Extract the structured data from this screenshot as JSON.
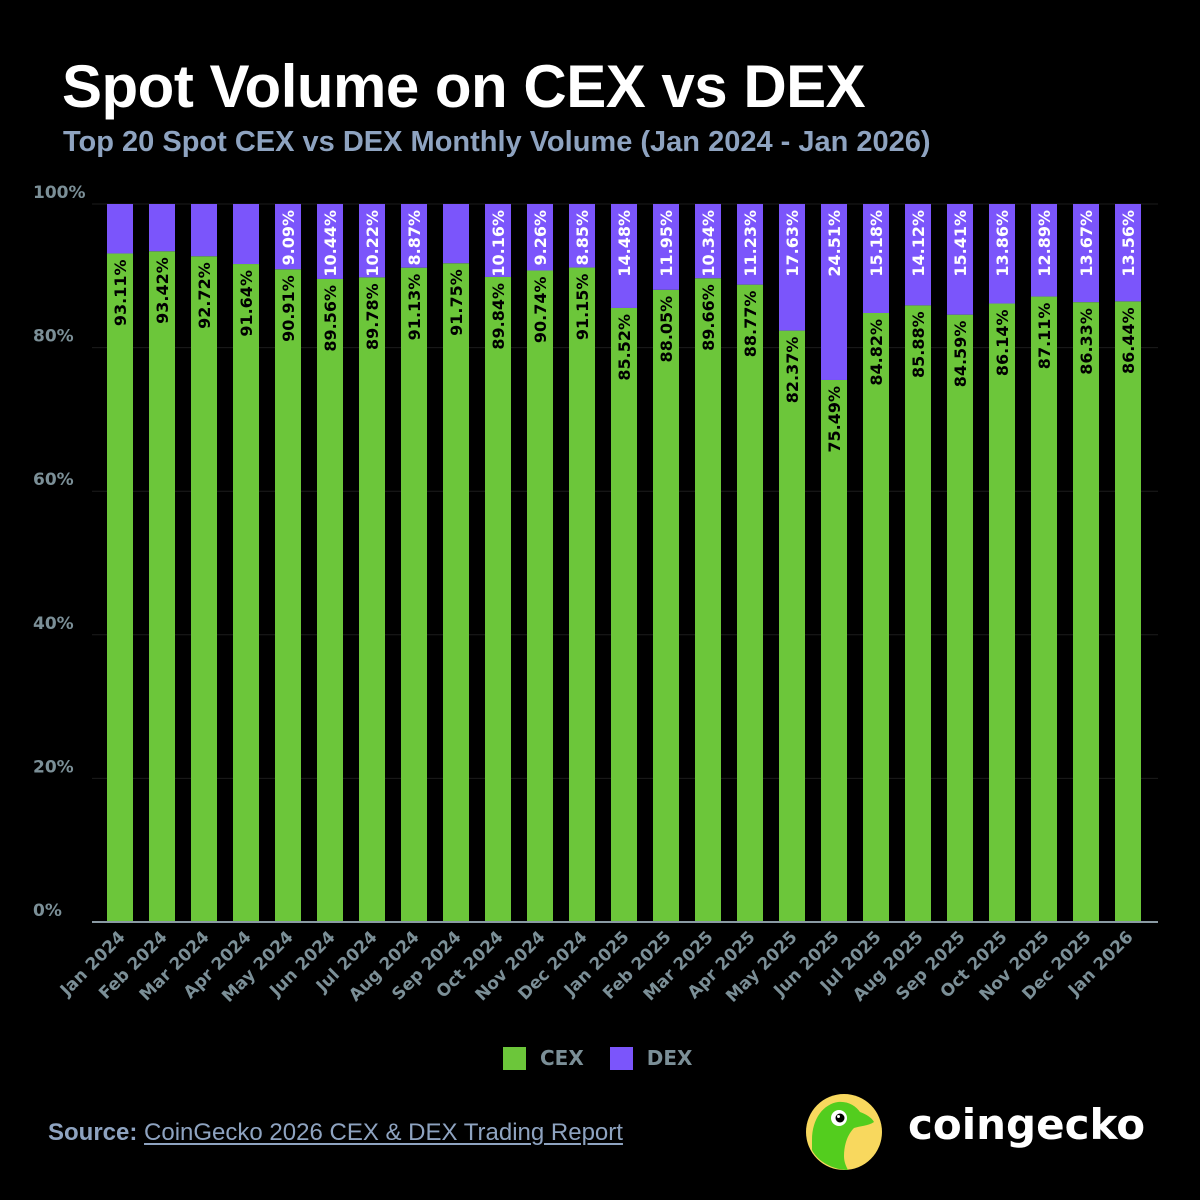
{
  "header": {
    "title": "Spot Volume on CEX vs DEX",
    "subtitle": "Top 20 Spot CEX vs DEX Monthly Volume (Jan 2024 - Jan 2026)"
  },
  "footer": {
    "source_label": "Source:",
    "source_link": "CoinGecko 2026 CEX & DEX Trading Report",
    "brand": "coingecko"
  },
  "colors": {
    "cex": "#6cc63a",
    "dex": "#7b55fb",
    "axis_text": "#7b8f97",
    "grid": "#1c1c1c",
    "axis_line": "#8a9aa3"
  },
  "chart_data": {
    "type": "bar",
    "stacked": true,
    "title": "Spot Volume on CEX vs DEX",
    "subtitle": "Top 20 Spot CEX vs DEX Monthly Volume (Jan 2024 - Jan 2026)",
    "xlabel": "",
    "ylabel": "",
    "ylim": [
      0,
      100
    ],
    "yticks": [
      "0%",
      "20%",
      "40%",
      "60%",
      "80%",
      "100%"
    ],
    "ytick_values": [
      0,
      20,
      40,
      60,
      80,
      100
    ],
    "grid": true,
    "legend_position": "bottom-center",
    "categories": [
      "Jan 2024",
      "Feb 2024",
      "Mar 2024",
      "Apr 2024",
      "May 2024",
      "Jun 2024",
      "Jul 2024",
      "Aug 2024",
      "Sep 2024",
      "Oct 2024",
      "Nov 2024",
      "Dec 2024",
      "Jan 2025",
      "Feb 2025",
      "Mar 2025",
      "Apr 2025",
      "May 2025",
      "Jun 2025",
      "Jul 2025",
      "Aug 2025",
      "Sep 2025",
      "Oct 2025",
      "Nov 2025",
      "Dec 2025",
      "Jan 2026"
    ],
    "series": [
      {
        "name": "CEX",
        "values": [
          93.11,
          93.42,
          92.72,
          91.64,
          90.91,
          89.56,
          89.78,
          91.13,
          91.75,
          89.84,
          90.74,
          91.15,
          85.52,
          88.05,
          89.66,
          88.77,
          82.37,
          75.49,
          84.82,
          85.88,
          84.59,
          86.14,
          87.11,
          86.33,
          86.44
        ],
        "labels": [
          "93.11%",
          "93.42%",
          "92.72%",
          "91.64%",
          "90.91%",
          "89.56%",
          "89.78%",
          "91.13%",
          "91.75%",
          "89.84%",
          "90.74%",
          "91.15%",
          "85.52%",
          "88.05%",
          "89.66%",
          "88.77%",
          "82.37%",
          "75.49%",
          "84.82%",
          "85.88%",
          "84.59%",
          "86.14%",
          "87.11%",
          "86.33%",
          "86.44%"
        ]
      },
      {
        "name": "DEX",
        "values": [
          6.89,
          6.58,
          7.28,
          8.36,
          9.09,
          10.44,
          10.22,
          8.87,
          8.25,
          10.16,
          9.26,
          8.85,
          14.48,
          11.95,
          10.34,
          11.23,
          17.63,
          24.51,
          15.18,
          14.12,
          15.41,
          13.86,
          12.89,
          13.67,
          13.56
        ],
        "labels": [
          "",
          "",
          "",
          "",
          "9.09%",
          "10.44%",
          "10.22%",
          "8.87%",
          "",
          "10.16%",
          "9.26%",
          "8.85%",
          "14.48%",
          "11.95%",
          "10.34%",
          "11.23%",
          "17.63%",
          "24.51%",
          "15.18%",
          "14.12%",
          "15.41%",
          "13.86%",
          "12.89%",
          "13.67%",
          "13.56%"
        ]
      }
    ]
  }
}
